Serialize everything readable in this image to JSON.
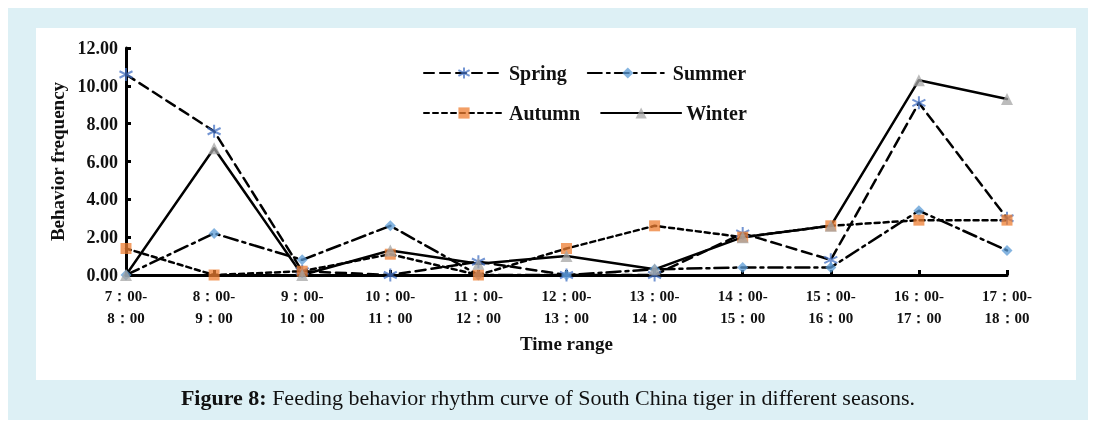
{
  "chart_data": {
    "type": "line",
    "xlabel": "Time range",
    "ylabel": "Behavior frequency",
    "annotations": [
      "Figure 8: Feeding behavior rhythm curve of South China tiger in different seasons."
    ],
    "categories": [
      "7：00-8：00",
      "8：00-9：00",
      "9：00-10：00",
      "10：00-11：00",
      "11：00-12：00",
      "12：00-13：00",
      "13：00-14：00",
      "14：00-15：00",
      "15：00-16：00",
      "16：00-17：00",
      "17：00-18：00"
    ],
    "ylim": [
      0,
      12
    ],
    "yticks": [
      {
        "value": 0,
        "label": "0.00"
      },
      {
        "value": 2,
        "label": "2.00"
      },
      {
        "value": 4,
        "label": "4.00"
      },
      {
        "value": 6,
        "label": "6.00"
      },
      {
        "value": 8,
        "label": "8.00"
      },
      {
        "value": 10,
        "label": "10.00"
      },
      {
        "value": 12,
        "label": "12.00"
      }
    ],
    "grid": false,
    "legend": "top",
    "series": [
      {
        "name": "Spring",
        "color": "#4472c4",
        "marker": "cross",
        "line_style": "dashed",
        "values": [
          10.6,
          7.6,
          0.2,
          0,
          0.7,
          0,
          0,
          2.2,
          0.8,
          9.1,
          3.0
        ]
      },
      {
        "name": "Summer",
        "color": "#5b9bd5",
        "marker": "diamond",
        "line_style": "dashdot",
        "values": [
          0,
          2.2,
          0.8,
          2.6,
          0,
          0,
          0.3,
          0.4,
          0.4,
          3.4,
          1.3
        ]
      },
      {
        "name": "Autumn",
        "color": "#ed7d31",
        "marker": "square",
        "line_style": "dotted",
        "values": [
          1.4,
          0,
          0.2,
          1.1,
          0,
          1.4,
          2.6,
          2.0,
          2.6,
          2.9,
          2.9
        ]
      },
      {
        "name": "Winter",
        "color": "#a5a5a5",
        "marker": "triangle",
        "line_style": "solid",
        "values": [
          0,
          6.7,
          0,
          1.3,
          0.6,
          1.0,
          0.3,
          2.0,
          2.6,
          10.3,
          9.3
        ]
      }
    ]
  }
}
